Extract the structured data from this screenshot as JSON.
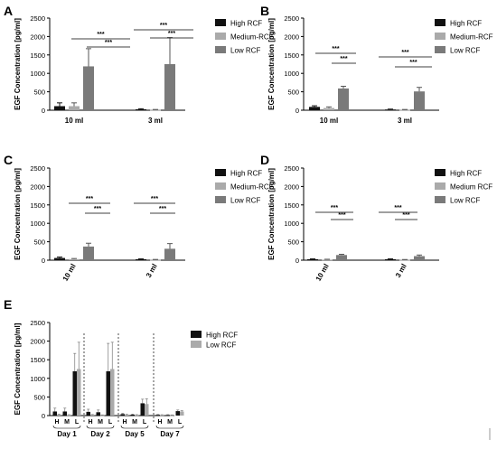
{
  "figure": {
    "background": "#ffffff"
  },
  "chart_data": [
    {
      "panel": "A",
      "type": "bar",
      "ylabel": "EGF Concentration [pg/ml]",
      "ylim": [
        0,
        2500
      ],
      "yticks": [
        "0",
        "500",
        "1000",
        "1500",
        "2000",
        "2500"
      ],
      "categories": [
        "10 ml",
        "3 ml"
      ],
      "legend_position": "right",
      "series": [
        {
          "name": "High RCF",
          "color": "#111111",
          "values": [
            110,
            25
          ],
          "errors": [
            90,
            15
          ]
        },
        {
          "name": "Medium-RCF",
          "color": "#aaaaaa",
          "values": [
            110,
            10
          ],
          "errors": [
            90,
            10
          ]
        },
        {
          "name": "Low RCF",
          "color": "#7a7a7a",
          "values": [
            1190,
            1250
          ],
          "errors": [
            480,
            720
          ]
        }
      ],
      "annotations": [
        "***",
        "***",
        "***",
        "***"
      ]
    },
    {
      "panel": "B",
      "type": "bar",
      "ylabel": "EGF Concentration [pg/ml]",
      "ylim": [
        0,
        2500
      ],
      "yticks": [
        "0",
        "500",
        "1000",
        "1500",
        "2000",
        "2500"
      ],
      "categories": [
        "10 ml",
        "3 ml"
      ],
      "legend_position": "right",
      "series": [
        {
          "name": "High RCF",
          "color": "#111111",
          "values": [
            90,
            20
          ],
          "errors": [
            30,
            10
          ]
        },
        {
          "name": "Medium-RCF",
          "color": "#aaaaaa",
          "values": [
            60,
            10
          ],
          "errors": [
            30,
            10
          ]
        },
        {
          "name": "Low RCF",
          "color": "#7a7a7a",
          "values": [
            590,
            510
          ],
          "errors": [
            60,
            110
          ]
        }
      ],
      "annotations": [
        "***",
        "***",
        "***",
        "***"
      ]
    },
    {
      "panel": "C",
      "type": "bar",
      "ylabel": "EGF Concentration [pg/ml]",
      "ylim": [
        0,
        2500
      ],
      "yticks": [
        "0",
        "500",
        "1000",
        "1500",
        "2000",
        "2500"
      ],
      "categories": [
        "10 ml",
        "3 ml"
      ],
      "legend_position": "right",
      "series": [
        {
          "name": "High RCF",
          "color": "#111111",
          "values": [
            60,
            25
          ],
          "errors": [
            25,
            10
          ]
        },
        {
          "name": "Medium-RCF",
          "color": "#aaaaaa",
          "values": [
            30,
            10
          ],
          "errors": [
            15,
            10
          ]
        },
        {
          "name": "Low RCF",
          "color": "#7a7a7a",
          "values": [
            370,
            310
          ],
          "errors": [
            90,
            140
          ]
        }
      ],
      "annotations": [
        "***",
        "***",
        "***",
        "***"
      ]
    },
    {
      "panel": "D",
      "type": "bar",
      "ylabel": "EGF Concentration [pg/ml]",
      "ylim": [
        0,
        2500
      ],
      "yticks": [
        "0",
        "500",
        "1000",
        "1500",
        "2000",
        "2500"
      ],
      "categories": [
        "10 ml",
        "3 ml"
      ],
      "legend_position": "right",
      "series": [
        {
          "name": "High RCF",
          "color": "#111111",
          "values": [
            25,
            25
          ],
          "errors": [
            10,
            10
          ]
        },
        {
          "name": "Medium RCF",
          "color": "#aaaaaa",
          "values": [
            15,
            10
          ],
          "errors": [
            10,
            8
          ]
        },
        {
          "name": "Low RCF",
          "color": "#7a7a7a",
          "values": [
            140,
            110
          ],
          "errors": [
            20,
            30
          ]
        }
      ],
      "annotations": [
        "***",
        "***",
        "***",
        "***"
      ]
    },
    {
      "panel": "E",
      "type": "bar",
      "ylabel": "EGF Concentration [pg/ml]",
      "ylim": [
        0,
        2500
      ],
      "yticks": [
        "0",
        "500",
        "1000",
        "1500",
        "2000",
        "2500"
      ],
      "groups": [
        "Day 1",
        "Day 2",
        "Day 5",
        "Day 7"
      ],
      "categories": [
        "H",
        "M",
        "L"
      ],
      "legend_position": "right",
      "series": [
        {
          "name": "High RCF",
          "color": "#111111",
          "values": [
            [
              110,
              110,
              1190
            ],
            [
              100,
              90,
              1190
            ],
            [
              40,
              25,
              330
            ],
            [
              20,
              15,
              120
            ]
          ],
          "errors": [
            [
              90,
              90,
              480
            ],
            [
              70,
              60,
              750
            ],
            [
              20,
              15,
              110
            ],
            [
              10,
              10,
              30
            ]
          ]
        },
        {
          "name": "Low RCF",
          "color": "#aaaaaa",
          "values": [
            [
              25,
              15,
              1250
            ],
            [
              20,
              10,
              1250
            ],
            [
              20,
              15,
              310
            ],
            [
              15,
              10,
              110
            ]
          ],
          "errors": [
            [
              15,
              10,
              720
            ],
            [
              10,
              8,
              720
            ],
            [
              15,
              10,
              140
            ],
            [
              8,
              8,
              20
            ]
          ]
        }
      ]
    }
  ]
}
